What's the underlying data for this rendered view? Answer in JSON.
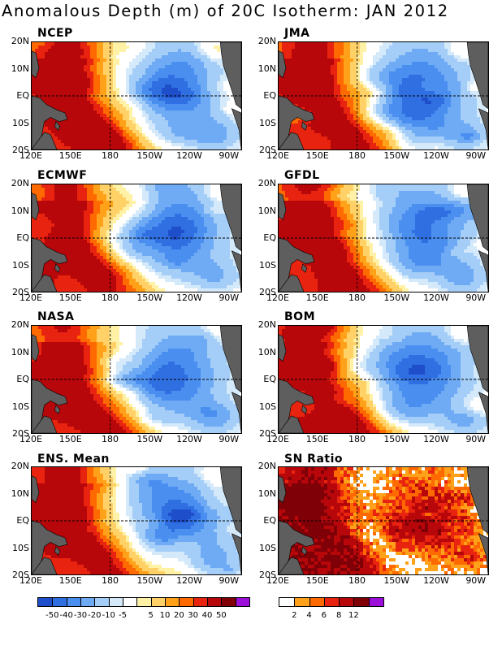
{
  "title": "Anomalous Depth (m) of 20C Isotherm: JAN 2012",
  "panels": [
    {
      "id": "ncep",
      "label": "NCEP",
      "seed": 11
    },
    {
      "id": "jma",
      "label": "JMA",
      "seed": 23
    },
    {
      "id": "ecmwf",
      "label": "ECMWF",
      "seed": 37
    },
    {
      "id": "gfdl",
      "label": "GFDL",
      "seed": 41
    },
    {
      "id": "nasa",
      "label": "NASA",
      "seed": 53
    },
    {
      "id": "bom",
      "label": "BOM",
      "seed": 67
    },
    {
      "id": "ens",
      "label": "ENS. Mean",
      "seed": 71
    },
    {
      "id": "sn",
      "label": "SN Ratio",
      "seed": 89,
      "type": "snr"
    }
  ],
  "axes": {
    "lat_labels": [
      "20N",
      "10N",
      "EQ",
      "10S",
      "20S"
    ],
    "lon_labels": [
      "120E",
      "150E",
      "180",
      "150W",
      "120W",
      "90W"
    ],
    "lat_range": [
      -20,
      20
    ],
    "lon_range": [
      120,
      280
    ]
  },
  "colorbar_anom": {
    "colors": [
      "#1f4ecb",
      "#2f6fe2",
      "#4a8ef0",
      "#6fabf5",
      "#a4cdf7",
      "#d4eafb",
      "#ffffff",
      "#fff1a6",
      "#ffd166",
      "#ffa21a",
      "#ff6a00",
      "#e8230f",
      "#b8070a",
      "#800008",
      "#9b0fd9"
    ],
    "labels": [
      "-50",
      "-40",
      "-30",
      "-20",
      "-10",
      "-5",
      "5",
      "10",
      "20",
      "30",
      "40",
      "50"
    ]
  },
  "colorbar_sn": {
    "colors": [
      "#ffffff",
      "#ffa21a",
      "#ff6a00",
      "#e8230f",
      "#b8070a",
      "#800008",
      "#9b0fd9"
    ],
    "labels": [
      "2",
      "4",
      "6",
      "8",
      "12"
    ]
  },
  "colors": {
    "land": "#5e5e5e",
    "grid": "#000000"
  }
}
